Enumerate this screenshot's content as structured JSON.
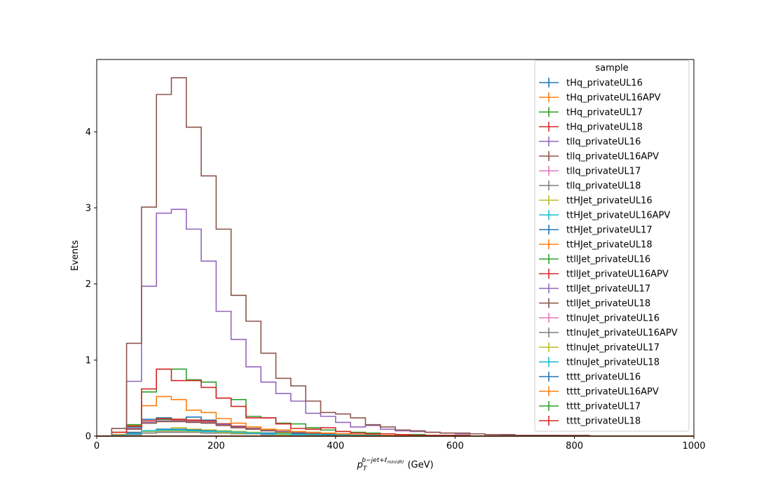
{
  "chart_data": {
    "type": "line",
    "step": true,
    "xlabel_base": "p",
    "xlabel_sub": "T",
    "xlabel_sup": "b−jet+ℓ",
    "xlabel_sup_sub": "min(dR)",
    "xlabel_unit": "(GeV)",
    "ylabel": "Events",
    "xlim": [
      0,
      1000
    ],
    "ylim": [
      0,
      4.95
    ],
    "x_ticks": [
      "0",
      "200",
      "400",
      "600",
      "800",
      "1000"
    ],
    "y_ticks": [
      "0",
      "1",
      "2",
      "3",
      "4"
    ],
    "legend_title": "sample",
    "legend_position": "top-right",
    "grid": false,
    "bin_edges": [
      0,
      25,
      50,
      75,
      100,
      125,
      150,
      175,
      200,
      225,
      250,
      275,
      300,
      325,
      350,
      375,
      400,
      425,
      450,
      475,
      500,
      525,
      550,
      575,
      600,
      625,
      650,
      675,
      700,
      725,
      750,
      775,
      800,
      825,
      850,
      875,
      900,
      925,
      950,
      975,
      1000
    ],
    "series": [
      {
        "name": "tHq_privateUL16",
        "color": "#1f77b4",
        "values": [
          0,
          0.02,
          0.12,
          0.22,
          0.24,
          0.22,
          0.25,
          0.21,
          0.16,
          0.13,
          0.1,
          0.08,
          0.06,
          0.05,
          0.04,
          0.03,
          0.02,
          0.02,
          0.01,
          0.01,
          0.01,
          0.01,
          0,
          0,
          0,
          0,
          0,
          0,
          0,
          0,
          0,
          0,
          0,
          0,
          0,
          0,
          0,
          0,
          0,
          0
        ]
      },
      {
        "name": "tHq_privateUL16APV",
        "color": "#ff7f0e",
        "values": [
          0,
          0.02,
          0.1,
          0.2,
          0.22,
          0.21,
          0.2,
          0.19,
          0.15,
          0.12,
          0.1,
          0.08,
          0.06,
          0.05,
          0.04,
          0.03,
          0.02,
          0.02,
          0.01,
          0.01,
          0.01,
          0,
          0,
          0,
          0,
          0,
          0,
          0,
          0,
          0,
          0,
          0,
          0,
          0,
          0,
          0,
          0,
          0,
          0,
          0
        ]
      },
      {
        "name": "tHq_privateUL17",
        "color": "#2ca02c",
        "values": [
          0,
          0.02,
          0.1,
          0.2,
          0.22,
          0.22,
          0.21,
          0.2,
          0.16,
          0.13,
          0.1,
          0.08,
          0.06,
          0.05,
          0.04,
          0.03,
          0.02,
          0.02,
          0.01,
          0.01,
          0.01,
          0,
          0,
          0,
          0,
          0,
          0,
          0,
          0,
          0,
          0,
          0,
          0,
          0,
          0,
          0,
          0,
          0,
          0,
          0
        ]
      },
      {
        "name": "tHq_privateUL18",
        "color": "#d62728",
        "values": [
          0,
          0.02,
          0.1,
          0.2,
          0.23,
          0.22,
          0.21,
          0.2,
          0.16,
          0.13,
          0.1,
          0.08,
          0.06,
          0.05,
          0.04,
          0.03,
          0.02,
          0.02,
          0.01,
          0.01,
          0.01,
          0,
          0,
          0,
          0,
          0,
          0,
          0,
          0,
          0,
          0,
          0,
          0,
          0,
          0,
          0,
          0,
          0,
          0,
          0
        ]
      },
      {
        "name": "tllq_privateUL16",
        "color": "#9467bd",
        "values": [
          0,
          0.02,
          0.1,
          0.18,
          0.2,
          0.2,
          0.19,
          0.18,
          0.15,
          0.12,
          0.1,
          0.08,
          0.06,
          0.05,
          0.04,
          0.03,
          0.02,
          0.02,
          0.01,
          0.01,
          0.01,
          0,
          0,
          0,
          0,
          0,
          0,
          0,
          0,
          0,
          0,
          0,
          0,
          0,
          0,
          0,
          0,
          0,
          0,
          0
        ]
      },
      {
        "name": "tllq_privateUL16APV",
        "color": "#8c564b",
        "values": [
          0,
          0.02,
          0.09,
          0.17,
          0.19,
          0.19,
          0.18,
          0.17,
          0.14,
          0.11,
          0.09,
          0.07,
          0.05,
          0.04,
          0.03,
          0.03,
          0.02,
          0.01,
          0.01,
          0.01,
          0.01,
          0,
          0,
          0,
          0,
          0,
          0,
          0,
          0,
          0,
          0,
          0,
          0,
          0,
          0,
          0,
          0,
          0,
          0,
          0
        ]
      },
      {
        "name": "tllq_privateUL17",
        "color": "#e377c2",
        "values": [
          0,
          0.01,
          0.05,
          0.07,
          0.07,
          0.07,
          0.06,
          0.06,
          0.05,
          0.04,
          0.03,
          0.03,
          0.02,
          0.02,
          0.01,
          0.01,
          0.01,
          0,
          0,
          0,
          0,
          0,
          0,
          0,
          0,
          0,
          0,
          0,
          0,
          0,
          0,
          0,
          0,
          0,
          0,
          0,
          0,
          0,
          0,
          0
        ]
      },
      {
        "name": "tllq_privateUL18",
        "color": "#7f7f7f",
        "values": [
          0,
          0.01,
          0.05,
          0.07,
          0.07,
          0.07,
          0.06,
          0.06,
          0.05,
          0.04,
          0.03,
          0.03,
          0.02,
          0.02,
          0.01,
          0.01,
          0.01,
          0,
          0,
          0,
          0,
          0,
          0,
          0,
          0,
          0,
          0,
          0,
          0,
          0,
          0,
          0,
          0,
          0,
          0,
          0,
          0,
          0,
          0,
          0
        ]
      },
      {
        "name": "ttHJet_privateUL16",
        "color": "#bcbd22",
        "values": [
          0,
          0.01,
          0.03,
          0.07,
          0.09,
          0.11,
          0.09,
          0.08,
          0.07,
          0.06,
          0.05,
          0.04,
          0.04,
          0.03,
          0.02,
          0.02,
          0.02,
          0.01,
          0.01,
          0.01,
          0.01,
          0,
          0,
          0,
          0,
          0,
          0,
          0,
          0,
          0,
          0,
          0,
          0,
          0,
          0,
          0,
          0,
          0,
          0,
          0
        ]
      },
      {
        "name": "ttHJet_privateUL16APV",
        "color": "#17becf",
        "values": [
          0,
          0.01,
          0.03,
          0.07,
          0.08,
          0.08,
          0.07,
          0.06,
          0.05,
          0.05,
          0.04,
          0.03,
          0.03,
          0.02,
          0.02,
          0.02,
          0.01,
          0.01,
          0.01,
          0.01,
          0,
          0,
          0,
          0,
          0,
          0,
          0,
          0,
          0,
          0,
          0,
          0,
          0,
          0,
          0,
          0,
          0,
          0,
          0,
          0
        ]
      },
      {
        "name": "ttHJet_privateUL17",
        "color": "#1f77b4",
        "values": [
          0,
          0.01,
          0.04,
          0.07,
          0.09,
          0.09,
          0.08,
          0.07,
          0.06,
          0.05,
          0.04,
          0.04,
          0.03,
          0.03,
          0.02,
          0.02,
          0.02,
          0.01,
          0.01,
          0.01,
          0.01,
          0,
          0,
          0,
          0,
          0,
          0,
          0,
          0,
          0,
          0,
          0,
          0,
          0,
          0,
          0,
          0,
          0,
          0,
          0
        ]
      },
      {
        "name": "ttHJet_privateUL18",
        "color": "#ff7f0e",
        "values": [
          0,
          0.02,
          0.14,
          0.4,
          0.52,
          0.48,
          0.34,
          0.31,
          0.23,
          0.17,
          0.12,
          0.09,
          0.08,
          0.06,
          0.05,
          0.04,
          0.03,
          0.02,
          0.02,
          0.01,
          0.01,
          0.01,
          0,
          0,
          0,
          0,
          0,
          0,
          0,
          0,
          0,
          0,
          0,
          0,
          0,
          0,
          0,
          0,
          0,
          0
        ]
      },
      {
        "name": "ttllJet_privateUL16",
        "color": "#2ca02c",
        "values": [
          0,
          0.05,
          0.15,
          0.58,
          0.88,
          0.88,
          0.74,
          0.71,
          0.5,
          0.48,
          0.26,
          0.24,
          0.17,
          0.16,
          0.11,
          0.08,
          0.06,
          0.05,
          0.04,
          0.03,
          0.02,
          0.02,
          0.01,
          0.01,
          0.01,
          0,
          0,
          0,
          0,
          0,
          0,
          0,
          0,
          0,
          0,
          0,
          0,
          0,
          0,
          0
        ]
      },
      {
        "name": "ttllJet_privateUL16APV",
        "color": "#d62728",
        "values": [
          0,
          0.05,
          0.13,
          0.62,
          0.88,
          0.73,
          0.73,
          0.64,
          0.5,
          0.39,
          0.24,
          0.24,
          0.16,
          0.1,
          0.09,
          0.11,
          0.06,
          0.04,
          0.03,
          0.03,
          0.02,
          0.01,
          0.01,
          0.01,
          0.01,
          0,
          0,
          0,
          0,
          0,
          0,
          0,
          0,
          0,
          0,
          0,
          0,
          0,
          0,
          0
        ]
      },
      {
        "name": "ttllJet_privateUL17",
        "color": "#9467bd",
        "values": [
          0,
          0.1,
          0.72,
          1.97,
          2.93,
          2.98,
          2.72,
          2.3,
          1.64,
          1.27,
          0.91,
          0.71,
          0.56,
          0.46,
          0.3,
          0.26,
          0.18,
          0.12,
          0.14,
          0.09,
          0.07,
          0.06,
          0.05,
          0.04,
          0.03,
          0.03,
          0.02,
          0.01,
          0.01,
          0.01,
          0.01,
          0,
          0,
          0,
          0,
          0,
          0,
          0,
          0,
          0
        ]
      },
      {
        "name": "ttllJet_privateUL18",
        "color": "#8c564b",
        "values": [
          0,
          0.1,
          1.22,
          3.01,
          4.49,
          4.71,
          4.06,
          3.42,
          2.72,
          1.85,
          1.51,
          1.09,
          0.76,
          0.66,
          0.46,
          0.31,
          0.29,
          0.24,
          0.15,
          0.12,
          0.08,
          0.07,
          0.05,
          0.04,
          0.04,
          0.03,
          0.02,
          0.02,
          0.01,
          0.01,
          0.01,
          0.01,
          0.01,
          0,
          0,
          0,
          0,
          0,
          0,
          0
        ]
      },
      {
        "name": "ttlnuJet_privateUL16",
        "color": "#e377c2",
        "values": [
          0,
          0.01,
          0.02,
          0.04,
          0.05,
          0.05,
          0.05,
          0.04,
          0.04,
          0.03,
          0.03,
          0.02,
          0.02,
          0.02,
          0.01,
          0.01,
          0.01,
          0.01,
          0,
          0,
          0,
          0,
          0,
          0,
          0,
          0,
          0,
          0,
          0,
          0,
          0,
          0,
          0,
          0,
          0,
          0,
          0,
          0,
          0,
          0
        ]
      },
      {
        "name": "ttlnuJet_privateUL16APV",
        "color": "#7f7f7f",
        "values": [
          0,
          0.01,
          0.02,
          0.04,
          0.05,
          0.05,
          0.05,
          0.04,
          0.04,
          0.03,
          0.03,
          0.02,
          0.02,
          0.02,
          0.01,
          0.01,
          0.01,
          0.01,
          0,
          0,
          0,
          0,
          0,
          0,
          0,
          0,
          0,
          0,
          0,
          0,
          0,
          0,
          0,
          0,
          0,
          0,
          0,
          0,
          0,
          0
        ]
      },
      {
        "name": "ttlnuJet_privateUL17",
        "color": "#bcbd22",
        "values": [
          0,
          0.01,
          0.03,
          0.06,
          0.07,
          0.07,
          0.06,
          0.06,
          0.05,
          0.04,
          0.04,
          0.03,
          0.02,
          0.02,
          0.02,
          0.01,
          0.01,
          0.01,
          0.01,
          0,
          0,
          0,
          0,
          0,
          0,
          0,
          0,
          0,
          0,
          0,
          0,
          0,
          0,
          0,
          0,
          0,
          0,
          0,
          0,
          0
        ]
      },
      {
        "name": "ttlnuJet_privateUL18",
        "color": "#17becf",
        "values": [
          0,
          0.01,
          0.03,
          0.07,
          0.08,
          0.08,
          0.07,
          0.06,
          0.06,
          0.05,
          0.04,
          0.03,
          0.03,
          0.02,
          0.02,
          0.01,
          0.01,
          0.01,
          0.01,
          0,
          0,
          0,
          0,
          0,
          0,
          0,
          0,
          0,
          0,
          0,
          0,
          0,
          0,
          0,
          0,
          0,
          0,
          0,
          0,
          0
        ]
      },
      {
        "name": "tttt_privateUL16",
        "color": "#1f77b4",
        "values": [
          0,
          0,
          0,
          0,
          0,
          0,
          0,
          0,
          0,
          0,
          0,
          0,
          0,
          0,
          0,
          0,
          0,
          0,
          0,
          0,
          0,
          0,
          0,
          0,
          0,
          0,
          0,
          0,
          0,
          0,
          0,
          0,
          0,
          0,
          0,
          0,
          0,
          0,
          0,
          0
        ]
      },
      {
        "name": "tttt_privateUL16APV",
        "color": "#ff7f0e",
        "values": [
          0,
          0,
          0,
          0,
          0,
          0,
          0,
          0,
          0,
          0,
          0,
          0,
          0,
          0,
          0,
          0,
          0,
          0,
          0,
          0,
          0,
          0,
          0,
          0,
          0,
          0,
          0,
          0,
          0,
          0,
          0,
          0,
          0,
          0,
          0,
          0,
          0,
          0,
          0,
          0
        ]
      },
      {
        "name": "tttt_privateUL17",
        "color": "#2ca02c",
        "values": [
          0,
          0,
          0,
          0,
          0,
          0,
          0,
          0,
          0,
          0,
          0,
          0,
          0,
          0,
          0,
          0,
          0,
          0,
          0,
          0,
          0,
          0,
          0,
          0,
          0,
          0,
          0,
          0,
          0,
          0,
          0,
          0,
          0,
          0,
          0,
          0,
          0,
          0,
          0,
          0
        ]
      },
      {
        "name": "tttt_privateUL18",
        "color": "#d62728",
        "values": [
          0,
          0,
          0,
          0,
          0,
          0,
          0,
          0,
          0,
          0,
          0,
          0,
          0,
          0,
          0,
          0,
          0,
          0,
          0,
          0,
          0,
          0,
          0,
          0,
          0,
          0,
          0,
          0,
          0,
          0,
          0,
          0,
          0,
          0,
          0,
          0,
          0,
          0,
          0,
          0
        ]
      }
    ]
  }
}
